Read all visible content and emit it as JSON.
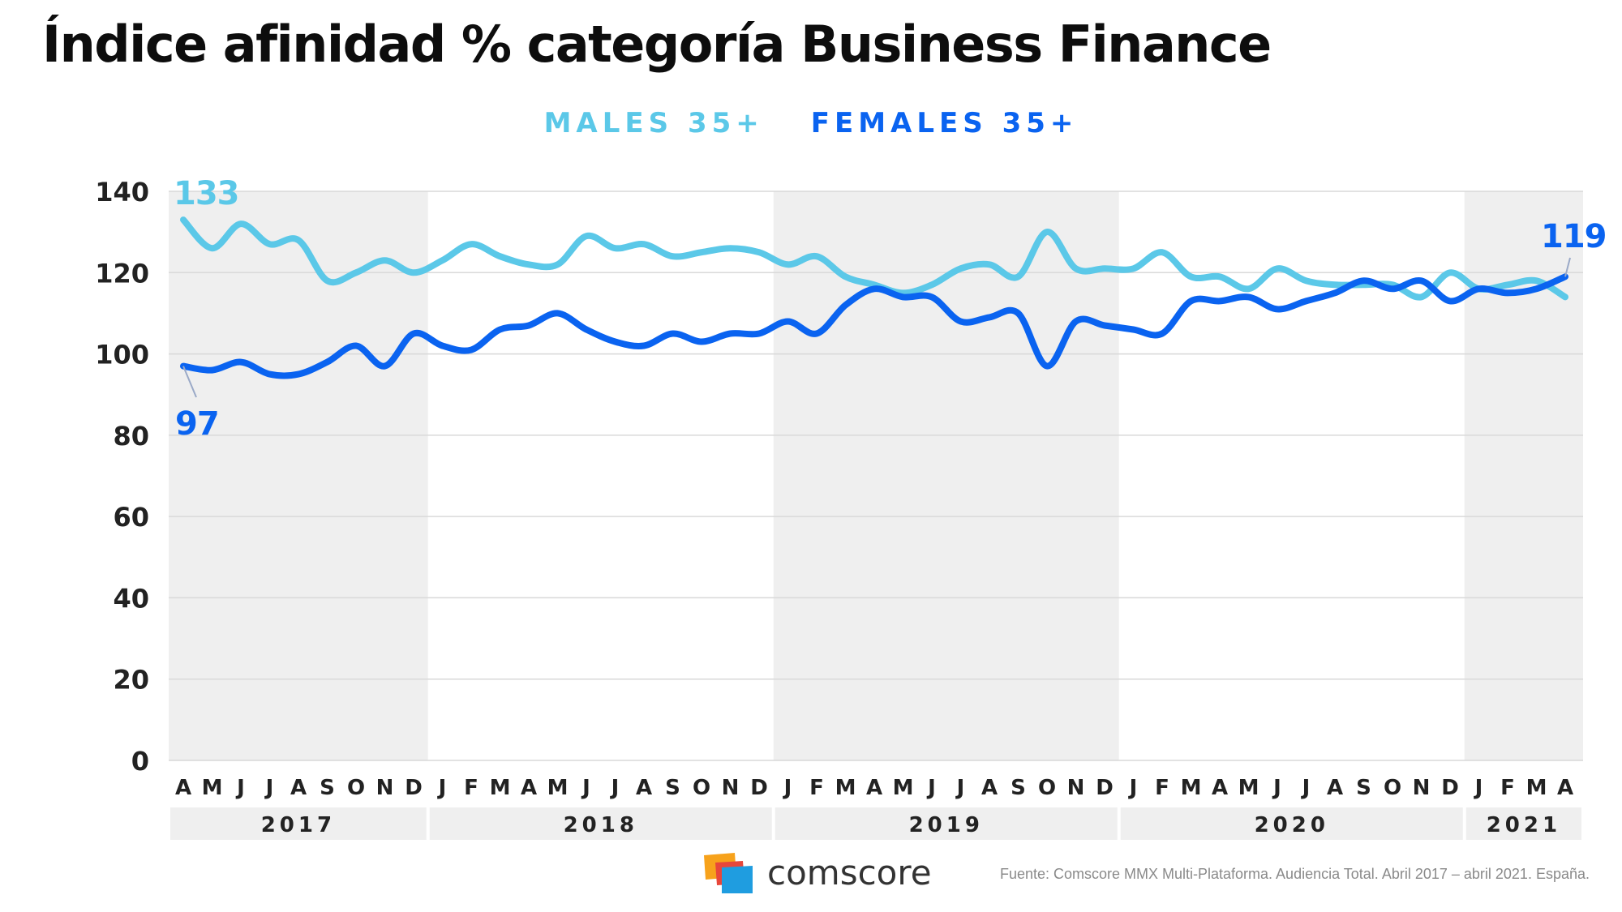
{
  "title": "Índice afinidad % categoría Business Finance",
  "logo_text": "comscore",
  "source": "Fuente: Comscore MMX Multi-Plataforma. Audiencia Total. Abril 2017 – abril 2021. España.",
  "colors": {
    "males": "#5bc8e8",
    "females": "#0a63f0",
    "band": "#efefef",
    "grid": "#d9d9d9",
    "axis_text": "#222222"
  },
  "chart_data": {
    "type": "line",
    "title": "Índice afinidad % categoría Business Finance",
    "xlabel": "",
    "ylabel": "",
    "ylim": [
      0,
      140
    ],
    "yticks": [
      0,
      20,
      40,
      60,
      80,
      100,
      120,
      140
    ],
    "legend_position": "top-center",
    "months": [
      "A",
      "M",
      "J",
      "J",
      "A",
      "S",
      "O",
      "N",
      "D",
      "J",
      "F",
      "M",
      "A",
      "M",
      "J",
      "J",
      "A",
      "S",
      "O",
      "N",
      "D",
      "J",
      "F",
      "M",
      "A",
      "M",
      "J",
      "J",
      "A",
      "S",
      "O",
      "N",
      "D",
      "J",
      "F",
      "M",
      "A",
      "M",
      "J",
      "J",
      "A",
      "S",
      "O",
      "N",
      "D",
      "J",
      "F",
      "M",
      "A"
    ],
    "years": [
      {
        "label": "2017",
        "start": 0,
        "end": 8
      },
      {
        "label": "2018",
        "start": 9,
        "end": 20
      },
      {
        "label": "2019",
        "start": 21,
        "end": 32
      },
      {
        "label": "2020",
        "start": 33,
        "end": 44
      },
      {
        "label": "2021",
        "start": 45,
        "end": 48
      }
    ],
    "series": [
      {
        "name": "MALES 35+",
        "color": "#5bc8e8",
        "values": [
          133,
          126,
          132,
          127,
          128,
          118,
          120,
          123,
          120,
          123,
          127,
          124,
          122,
          122,
          129,
          126,
          127,
          124,
          125,
          126,
          125,
          122,
          124,
          119,
          117,
          115,
          117,
          121,
          122,
          119,
          130,
          121,
          121,
          121,
          125,
          119,
          119,
          116,
          121,
          118,
          117,
          117,
          117,
          114,
          120,
          116,
          117,
          118,
          114
        ]
      },
      {
        "name": "FEMALES 35+",
        "color": "#0a63f0",
        "values": [
          97,
          96,
          98,
          95,
          95,
          98,
          102,
          97,
          105,
          102,
          101,
          106,
          107,
          110,
          106,
          103,
          102,
          105,
          103,
          105,
          105,
          108,
          105,
          112,
          116,
          114,
          114,
          108,
          109,
          110,
          97,
          108,
          107,
          106,
          105,
          113,
          113,
          114,
          111,
          113,
          115,
          118,
          116,
          118,
          113,
          116,
          115,
          116,
          119
        ]
      }
    ],
    "annotations": [
      {
        "label": "133",
        "series": "MALES 35+",
        "value": 133
      },
      {
        "label": "97",
        "series": "FEMALES 35+",
        "value": 97
      },
      {
        "label": "119",
        "series": "FEMALES 35+",
        "value": 119
      }
    ]
  }
}
